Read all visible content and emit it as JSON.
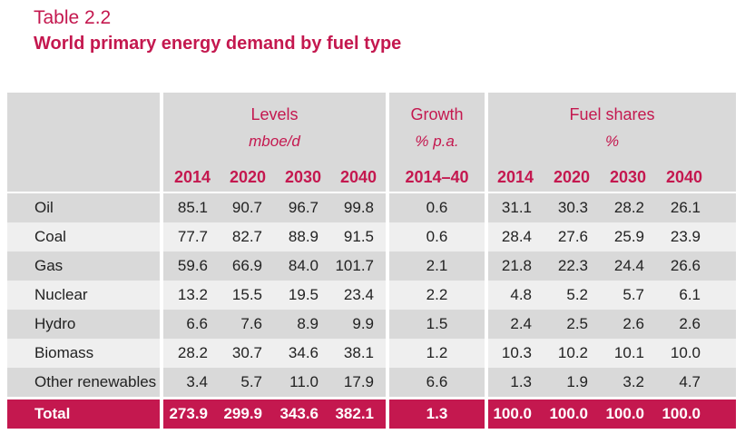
{
  "table_label": "Table 2.2",
  "title": "World primary energy demand by fuel type",
  "header": {
    "levels": "Levels",
    "levels_unit": "mboe/d",
    "growth": "Growth",
    "growth_unit": "% p.a.",
    "shares": "Fuel shares",
    "shares_unit": "%",
    "level_years": [
      "2014",
      "2020",
      "2030",
      "2040"
    ],
    "growth_period": "2014–40",
    "share_years": [
      "2014",
      "2020",
      "2030",
      "2040"
    ]
  },
  "rows": [
    {
      "name": "Oil",
      "levels": [
        "85.1",
        "90.7",
        "96.7",
        "99.8"
      ],
      "growth": "0.6",
      "shares": [
        "31.1",
        "30.3",
        "28.2",
        "26.1"
      ]
    },
    {
      "name": "Coal",
      "levels": [
        "77.7",
        "82.7",
        "88.9",
        "91.5"
      ],
      "growth": "0.6",
      "shares": [
        "28.4",
        "27.6",
        "25.9",
        "23.9"
      ]
    },
    {
      "name": "Gas",
      "levels": [
        "59.6",
        "66.9",
        "84.0",
        "101.7"
      ],
      "growth": "2.1",
      "shares": [
        "21.8",
        "22.3",
        "24.4",
        "26.6"
      ]
    },
    {
      "name": "Nuclear",
      "levels": [
        "13.2",
        "15.5",
        "19.5",
        "23.4"
      ],
      "growth": "2.2",
      "shares": [
        "4.8",
        "5.2",
        "5.7",
        "6.1"
      ]
    },
    {
      "name": "Hydro",
      "levels": [
        "6.6",
        "7.6",
        "8.9",
        "9.9"
      ],
      "growth": "1.5",
      "shares": [
        "2.4",
        "2.5",
        "2.6",
        "2.6"
      ]
    },
    {
      "name": "Biomass",
      "levels": [
        "28.2",
        "30.7",
        "34.6",
        "38.1"
      ],
      "growth": "1.2",
      "shares": [
        "10.3",
        "10.2",
        "10.1",
        "10.0"
      ]
    },
    {
      "name": "Other renewables",
      "levels": [
        "3.4",
        "5.7",
        "11.0",
        "17.9"
      ],
      "growth": "6.6",
      "shares": [
        "1.3",
        "1.9",
        "3.2",
        "4.7"
      ]
    }
  ],
  "total": {
    "name": "Total",
    "levels": [
      "273.9",
      "299.9",
      "343.6",
      "382.1"
    ],
    "growth": "1.3",
    "shares": [
      "100.0",
      "100.0",
      "100.0",
      "100.0"
    ]
  },
  "colors": {
    "accent": "#c4184f",
    "band_dark": "#d9d9d9",
    "band_light": "#efefef"
  }
}
